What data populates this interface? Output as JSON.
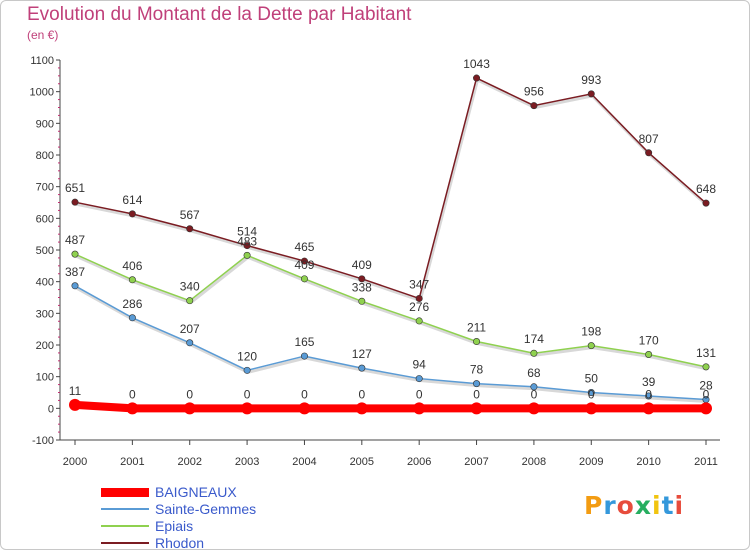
{
  "title": "Evolution du Montant de la Dette par Habitant",
  "subtitle": "(en €)",
  "brand": "Proxiti",
  "chart_data": {
    "type": "line",
    "x": [
      "2000",
      "2001",
      "2002",
      "2003",
      "2004",
      "2005",
      "2006",
      "2007",
      "2008",
      "2009",
      "2010",
      "2011"
    ],
    "ylim": [
      -100,
      1100
    ],
    "yticks": [
      -100,
      0,
      100,
      200,
      300,
      400,
      500,
      600,
      700,
      800,
      900,
      1000,
      1100
    ],
    "grid": false,
    "legend_position": "bottom-left",
    "series": [
      {
        "name": "BAIGNEAUX",
        "color": "#ff0000",
        "values": [
          11,
          0,
          0,
          0,
          0,
          0,
          0,
          0,
          0,
          0,
          0,
          0
        ],
        "labels": [
          "11",
          "0",
          "0",
          "0",
          "0",
          "0",
          "0",
          "0",
          "0",
          "0",
          "0",
          "0"
        ]
      },
      {
        "name": "Sainte-Gemmes",
        "color": "#5a9bd5",
        "values": [
          387,
          286,
          207,
          120,
          165,
          127,
          94,
          78,
          68,
          50,
          39,
          28
        ],
        "labels": [
          "387",
          "286",
          "207",
          "120",
          "165",
          "127",
          "94",
          "78",
          "68",
          "50",
          "39",
          "28"
        ]
      },
      {
        "name": "Epiais",
        "color": "#8fd14f",
        "values": [
          487,
          406,
          340,
          483,
          409,
          338,
          276,
          211,
          174,
          198,
          170,
          131
        ],
        "labels": [
          "487",
          "406",
          "340",
          "483",
          "409",
          "338",
          "276",
          "211",
          "174",
          "198",
          "170",
          "131"
        ]
      },
      {
        "name": "Rhodon",
        "color": "#7b1c22",
        "values": [
          651,
          614,
          567,
          514,
          465,
          409,
          347,
          1043,
          956,
          993,
          807,
          648
        ],
        "labels": [
          "651",
          "614",
          "567",
          "514",
          "465",
          "409",
          "347",
          "1043",
          "956",
          "993",
          "807",
          "648"
        ]
      }
    ]
  }
}
